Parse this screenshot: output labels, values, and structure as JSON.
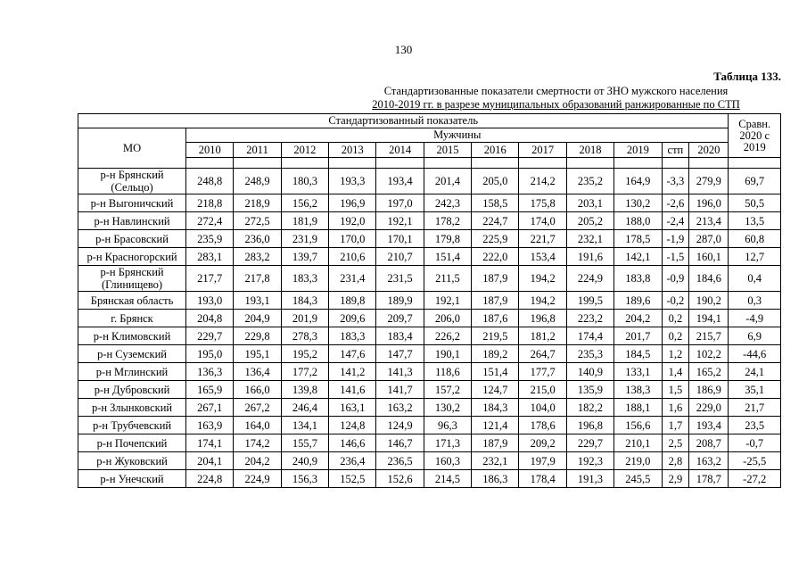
{
  "page": {
    "number": "130",
    "table_caption": "Таблица 133.",
    "title_line1": "Стандартизованные показатели смертности от ЗНО мужского населения",
    "title_line2": "2010-2019 гг. в разрезе муниципальных образований ранжированные по СТП"
  },
  "table": {
    "header": {
      "group_title": "Стандартизованный показатель",
      "subgroup_title": "Мужчины",
      "mo_label": "МО",
      "compare_label": "Сравн. 2020 с 2019",
      "year_columns": [
        "2010",
        "2011",
        "2012",
        "2013",
        "2014",
        "2015",
        "2016",
        "2017",
        "2018",
        "2019",
        "стп",
        "2020"
      ]
    },
    "rows": [
      {
        "mo": "р-н Брянский (Сельцо)",
        "values": [
          "248,8",
          "248,9",
          "180,3",
          "193,3",
          "193,4",
          "201,4",
          "205,0",
          "214,2",
          "235,2",
          "164,9",
          "-3,3",
          "279,9"
        ],
        "compare": "69,7"
      },
      {
        "mo": "р-н Выгоничский",
        "values": [
          "218,8",
          "218,9",
          "156,2",
          "196,9",
          "197,0",
          "242,3",
          "158,5",
          "175,8",
          "203,1",
          "130,2",
          "-2,6",
          "196,0"
        ],
        "compare": "50,5"
      },
      {
        "mo": "р-н Навлинский",
        "values": [
          "272,4",
          "272,5",
          "181,9",
          "192,0",
          "192,1",
          "178,2",
          "224,7",
          "174,0",
          "205,2",
          "188,0",
          "-2,4",
          "213,4"
        ],
        "compare": "13,5"
      },
      {
        "mo": "р-н Брасовский",
        "values": [
          "235,9",
          "236,0",
          "231,9",
          "170,0",
          "170,1",
          "179,8",
          "225,9",
          "221,7",
          "232,1",
          "178,5",
          "-1,9",
          "287,0"
        ],
        "compare": "60,8"
      },
      {
        "mo": "р-н Красногорский",
        "values": [
          "283,1",
          "283,2",
          "139,7",
          "210,6",
          "210,7",
          "151,4",
          "222,0",
          "153,4",
          "191,6",
          "142,1",
          "-1,5",
          "160,1"
        ],
        "compare": "12,7"
      },
      {
        "mo": "р-н Брянский (Глинищево)",
        "values": [
          "217,7",
          "217,8",
          "183,3",
          "231,4",
          "231,5",
          "211,5",
          "187,9",
          "194,2",
          "224,9",
          "183,8",
          "-0,9",
          "184,6"
        ],
        "compare": "0,4"
      },
      {
        "mo": "Брянская область",
        "values": [
          "193,0",
          "193,1",
          "184,3",
          "189,8",
          "189,9",
          "192,1",
          "187,9",
          "194,2",
          "199,5",
          "189,6",
          "-0,2",
          "190,2"
        ],
        "compare": "0,3"
      },
      {
        "mo": "г. Брянск",
        "values": [
          "204,8",
          "204,9",
          "201,9",
          "209,6",
          "209,7",
          "206,0",
          "187,6",
          "196,8",
          "223,2",
          "204,2",
          "0,2",
          "194,1"
        ],
        "compare": "-4,9"
      },
      {
        "mo": "р-н Климовский",
        "values": [
          "229,7",
          "229,8",
          "278,3",
          "183,3",
          "183,4",
          "226,2",
          "219,5",
          "181,2",
          "174,4",
          "201,7",
          "0,2",
          "215,7"
        ],
        "compare": "6,9"
      },
      {
        "mo": "р-н Суземский",
        "values": [
          "195,0",
          "195,1",
          "195,2",
          "147,6",
          "147,7",
          "190,1",
          "189,2",
          "264,7",
          "235,3",
          "184,5",
          "1,2",
          "102,2"
        ],
        "compare": "-44,6"
      },
      {
        "mo": "р-н Мглинский",
        "values": [
          "136,3",
          "136,4",
          "177,2",
          "141,2",
          "141,3",
          "118,6",
          "151,4",
          "177,7",
          "140,9",
          "133,1",
          "1,4",
          "165,2"
        ],
        "compare": "24,1"
      },
      {
        "mo": "р-н Дубровский",
        "values": [
          "165,9",
          "166,0",
          "139,8",
          "141,6",
          "141,7",
          "157,2",
          "124,7",
          "215,0",
          "135,9",
          "138,3",
          "1,5",
          "186,9"
        ],
        "compare": "35,1"
      },
      {
        "mo": "р-н Злынковский",
        "values": [
          "267,1",
          "267,2",
          "246,4",
          "163,1",
          "163,2",
          "130,2",
          "184,3",
          "104,0",
          "182,2",
          "188,1",
          "1,6",
          "229,0"
        ],
        "compare": "21,7"
      },
      {
        "mo": "р-н Трубчевский",
        "values": [
          "163,9",
          "164,0",
          "134,1",
          "124,8",
          "124,9",
          "96,3",
          "121,4",
          "178,6",
          "196,8",
          "156,6",
          "1,7",
          "193,4"
        ],
        "compare": "23,5"
      },
      {
        "mo": "р-н Почепский",
        "values": [
          "174,1",
          "174,2",
          "155,7",
          "146,6",
          "146,7",
          "171,3",
          "187,9",
          "209,2",
          "229,7",
          "210,1",
          "2,5",
          "208,7"
        ],
        "compare": "-0,7"
      },
      {
        "mo": "р-н Жуковский",
        "values": [
          "204,1",
          "204,2",
          "240,9",
          "236,4",
          "236,5",
          "160,3",
          "232,1",
          "197,9",
          "192,3",
          "219,0",
          "2,8",
          "163,2"
        ],
        "compare": "-25,5"
      },
      {
        "mo": "р-н Унечский",
        "values": [
          "224,8",
          "224,9",
          "156,3",
          "152,5",
          "152,6",
          "214,5",
          "186,3",
          "178,4",
          "191,3",
          "245,5",
          "2,9",
          "178,7"
        ],
        "compare": "-27,2"
      }
    ]
  }
}
